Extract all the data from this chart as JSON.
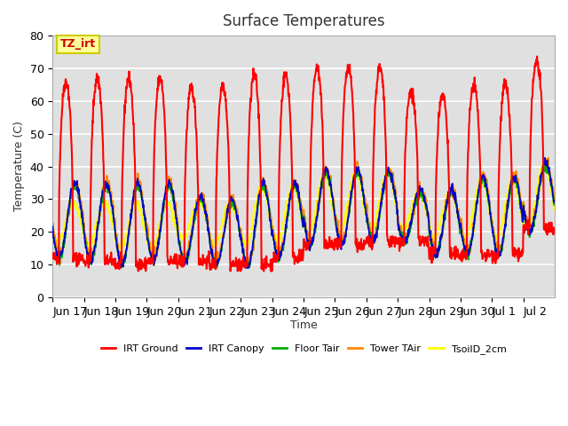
{
  "title": "Surface Temperatures",
  "ylabel": "Temperature (C)",
  "xlabel": "Time",
  "ylim": [
    0,
    80
  ],
  "annotation_text": "TZ_irt",
  "annotation_color": "#cc0000",
  "annotation_bg": "#ffff99",
  "annotation_border": "#cccc00",
  "series": [
    {
      "label": "IRT Ground",
      "color": "#ff0000",
      "linewidth": 1.5
    },
    {
      "label": "IRT Canopy",
      "color": "#0000cc",
      "linewidth": 1.2
    },
    {
      "label": "Floor Tair",
      "color": "#00aa00",
      "linewidth": 1.2
    },
    {
      "label": "Tower TAir",
      "color": "#ff8800",
      "linewidth": 1.5
    },
    {
      "label": "TsoilD_2cm",
      "color": "#ffff00",
      "linewidth": 1.5
    }
  ],
  "x_tick_labels": [
    "Jun 17",
    "Jun 18",
    "Jun 19",
    "Jun 20",
    "Jun 21",
    "Jun 22",
    "Jun 23",
    "Jun 24",
    "Jun 25",
    "Jun 26",
    "Jun 27",
    "Jun 28",
    "Jun 29",
    "Jun 30",
    "Jul 1",
    "Jul 2"
  ],
  "yticks": [
    0,
    10,
    20,
    30,
    40,
    50,
    60,
    70,
    80
  ],
  "background_color": "#e0e0e0",
  "plot_bg_color": "#e0e0e0",
  "grid_color": "#ffffff",
  "fig_bg_color": "#ffffff"
}
